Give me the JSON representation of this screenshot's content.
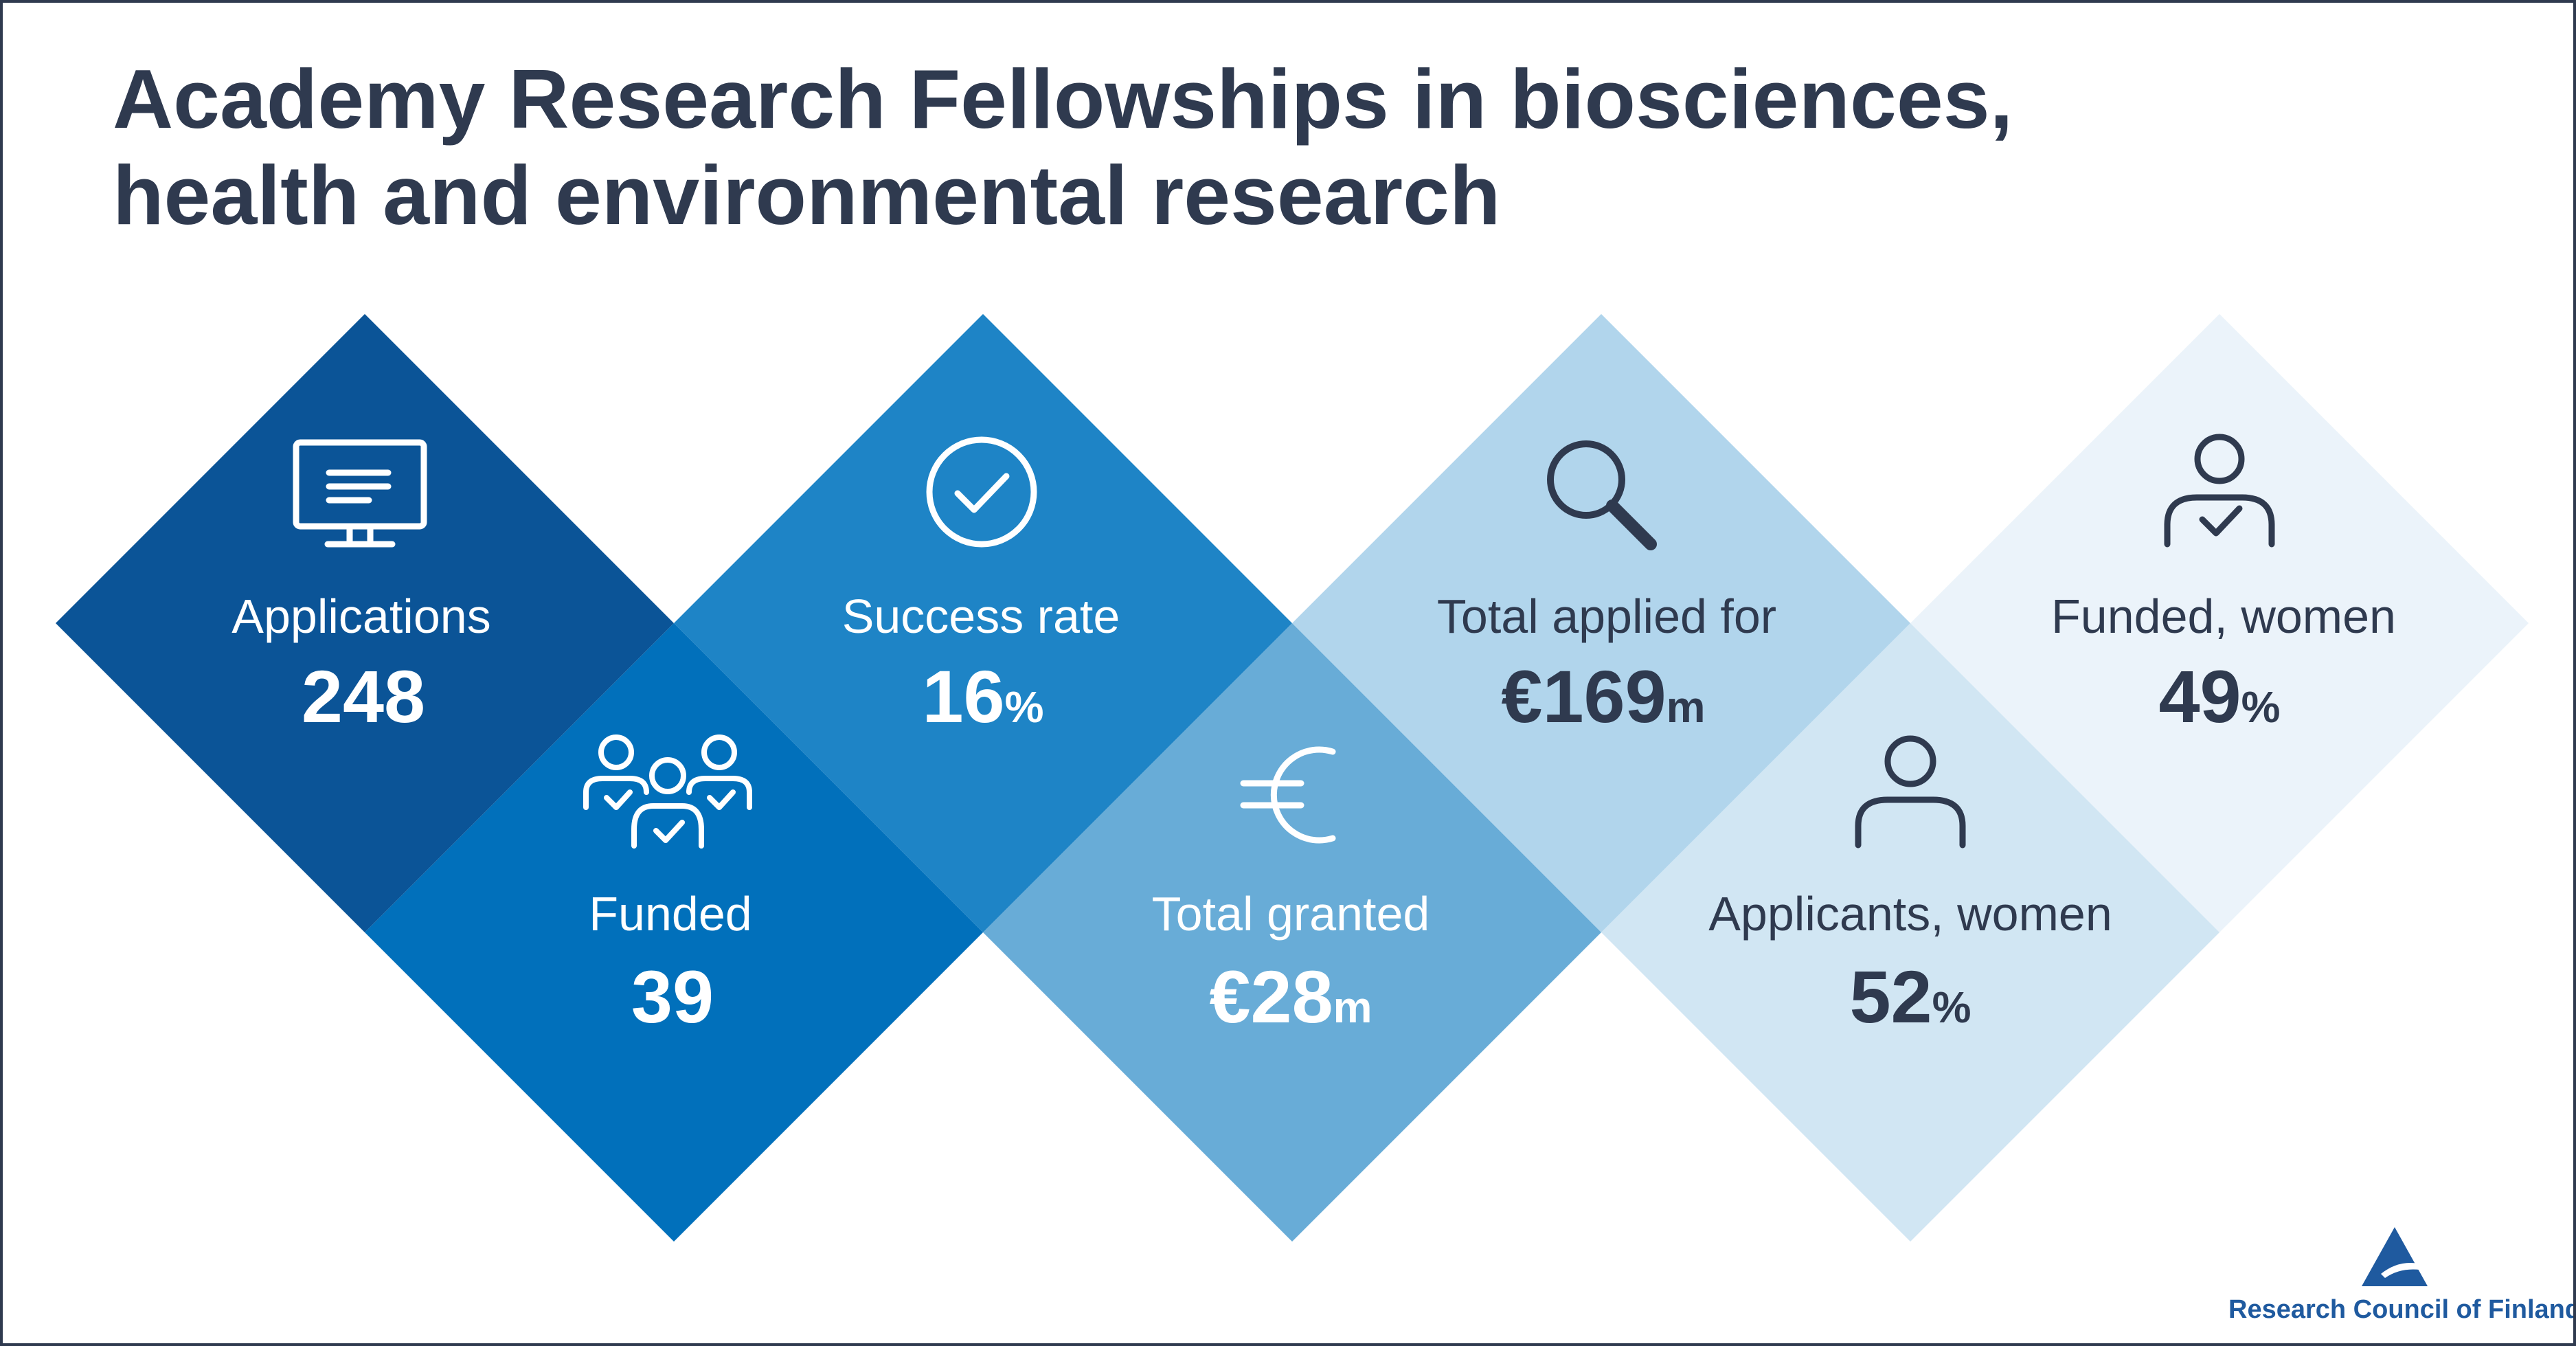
{
  "title": {
    "line1": "Academy Research Fellowships in biosciences,",
    "line2": "health and environmental research"
  },
  "tiles": {
    "applications": {
      "label": "Applications",
      "value": "248",
      "unit": "",
      "icon": "monitor-icon",
      "color": "#0b5497"
    },
    "funded": {
      "label": "Funded",
      "value": "39",
      "unit": "",
      "icon": "group-check-icon",
      "color": "#0170bb"
    },
    "success_rate": {
      "label": "Success rate",
      "value": "16",
      "unit": "%",
      "icon": "check-circle-icon",
      "color": "#1e84c6"
    },
    "total_granted": {
      "label": "Total granted",
      "value": "€28",
      "unit": "m",
      "icon": "euro-icon",
      "color": "#68acd7"
    },
    "total_applied": {
      "label": "Total applied for",
      "value": "€169",
      "unit": "m",
      "icon": "magnifier-icon",
      "color": "#b1d5ec"
    },
    "applicants_women": {
      "label": "Applicants, women",
      "value": "52",
      "unit": "%",
      "icon": "person-icon",
      "color": "#d1e6f3"
    },
    "funded_women": {
      "label": "Funded, women",
      "value": "49",
      "unit": "%",
      "icon": "person-check-icon",
      "color": "#ebf3fa"
    }
  },
  "colors": {
    "text_dark": "#2f3a4f",
    "text_light": "#ffffff",
    "brand": "#1f5a9f"
  },
  "logo": {
    "text": "Research Council of Finland",
    "icon": "triangle-logo-icon"
  }
}
